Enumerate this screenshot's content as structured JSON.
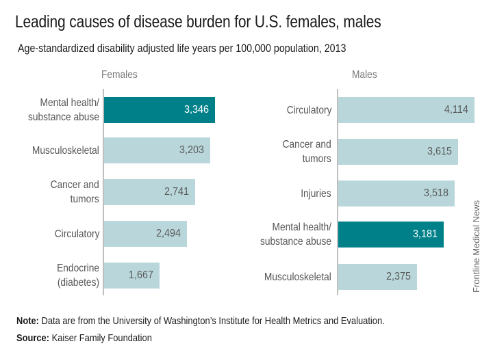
{
  "chart_data": [
    {
      "type": "bar",
      "orientation": "horizontal",
      "title": "Leading causes of disease burden for U.S. females, males",
      "subtitle": "Age-standardized disability adjusted life years per 100,000 population, 2013",
      "panel": "Females",
      "categories": [
        "Mental health/\nsubstance abuse",
        "Musculoskeletal",
        "Cancer and\ntumors",
        "Circulatory",
        "Endocrine\n(diabetes)"
      ],
      "values": [
        3346,
        3203,
        2741,
        2494,
        1667
      ],
      "value_labels": [
        "3,346",
        "3,203",
        "2,741",
        "2,494",
        "1,667"
      ],
      "highlight": [
        true,
        false,
        false,
        false,
        false
      ],
      "xlim": [
        0,
        4200
      ]
    },
    {
      "type": "bar",
      "orientation": "horizontal",
      "panel": "Males",
      "categories": [
        "Circulatory",
        "Cancer and\ntumors",
        "Injuries",
        "Mental health/\nsubstance abuse",
        "Musculoskeletal"
      ],
      "values": [
        4114,
        3615,
        3518,
        3181,
        2375
      ],
      "value_labels": [
        "4,114",
        "3,615",
        "3,518",
        "3,181",
        "2,375"
      ],
      "highlight": [
        false,
        false,
        false,
        true,
        false
      ],
      "xlim": [
        0,
        4200
      ]
    }
  ],
  "header": {
    "title": "Leading causes of disease burden for U.S. females, males",
    "subtitle": "Age-standardized disability adjusted life years per 100,000 population, 2013"
  },
  "panels": {
    "females_title": "Females",
    "males_title": "Males"
  },
  "footer": {
    "note_label": "Note:",
    "note_text": " Data are from the University of Washington’s Institute for Health Metrics and Evaluation.",
    "source_label": "Source:",
    "source_text": " Kaiser Family Foundation",
    "credit": "Frontline Medical News"
  },
  "colors": {
    "highlight": "#00818a",
    "normal": "#b9d7db",
    "highlight_text": "#ffffff",
    "normal_text": "#5a5a5a"
  }
}
